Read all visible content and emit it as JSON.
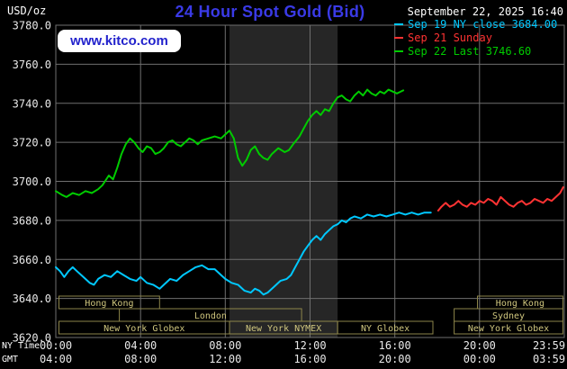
{
  "header": {
    "title": "24 Hour Spot Gold (Bid)",
    "datetime": "September 22, 2025 16:40",
    "watermark": "www.kitco.com",
    "unit": "USD/oz"
  },
  "axes": {
    "ny_time_label": "NY Time",
    "gmt_label": "GMT"
  },
  "legend": [
    {
      "id": "sep19",
      "text": "Sep 19 NY close 3684.00",
      "color": "#00c8ff"
    },
    {
      "id": "sep21",
      "text": "Sep 21 Sunday",
      "color": "#ff3333"
    },
    {
      "id": "sep22",
      "text": "Sep 22 Last 3746.60",
      "color": "#00cc00"
    }
  ],
  "colors": {
    "background": "#000000",
    "title": "#3a3ae6",
    "watermark_text": "#2222cc",
    "datetime_text": "#ffffff"
  },
  "chart_data": {
    "type": "line",
    "title": "24 Hour Spot Gold (Bid)",
    "ylabel": "USD/oz",
    "xlabel": "NY Time / GMT",
    "xlim": [
      0,
      24
    ],
    "ylim": [
      3620,
      3780
    ],
    "grid": true,
    "legend_position": "top-right",
    "colors": {
      "grid": "#6f6f6f",
      "band": "#262626",
      "axis_text": "#e9e9e9",
      "session_box": "#8d854a",
      "session_text": "#cfc67e"
    },
    "band": {
      "name": "NYMEX floor session",
      "start": 8.2,
      "end": 13.3
    },
    "y_ticks": [
      {
        "v": 3780,
        "label": "3780.0"
      },
      {
        "v": 3760,
        "label": "3760.0"
      },
      {
        "v": 3740,
        "label": "3740.0"
      },
      {
        "v": 3720,
        "label": "3720.0"
      },
      {
        "v": 3700,
        "label": "3700.0"
      },
      {
        "v": 3680,
        "label": "3680.0"
      },
      {
        "v": 3660,
        "label": "3660.0"
      },
      {
        "v": 3640,
        "label": "3640.0"
      },
      {
        "v": 3620,
        "label": "3620.0"
      }
    ],
    "x_ticks": [
      {
        "h": 0,
        "ny": "00:00",
        "gmt": "04:00"
      },
      {
        "h": 4,
        "ny": "04:00",
        "gmt": "08:00"
      },
      {
        "h": 8,
        "ny": "08:00",
        "gmt": "12:00"
      },
      {
        "h": 12,
        "ny": "12:00",
        "gmt": "16:00"
      },
      {
        "h": 16,
        "ny": "16:00",
        "gmt": "20:00"
      },
      {
        "h": 20,
        "ny": "20:00",
        "gmt": "00:00"
      },
      {
        "h": 24,
        "ny": "23:59",
        "gmt": "03:59"
      }
    ],
    "sessions": [
      {
        "row": 0,
        "start": 0.15,
        "end": 4.9,
        "label": "Hong Kong"
      },
      {
        "row": 0,
        "start": 19.9,
        "end": 23.93,
        "label": "Hong Kong"
      },
      {
        "row": 1,
        "start": 3.0,
        "end": 11.6,
        "label": "London"
      },
      {
        "row": 1,
        "start": 18.8,
        "end": 23.93,
        "label": "Sydney"
      },
      {
        "row": 2,
        "start": 0.15,
        "end": 8.2,
        "label": "New York Globex"
      },
      {
        "row": 2,
        "start": 8.2,
        "end": 13.3,
        "label": "New York NYMEX"
      },
      {
        "row": 2,
        "start": 13.3,
        "end": 17.8,
        "label": "NY Globex"
      },
      {
        "row": 2,
        "start": 18.8,
        "end": 23.93,
        "label": "New York Globex"
      }
    ],
    "series": [
      {
        "id": "sep19",
        "name": "Sep 19 NY close",
        "close": 3684.0,
        "color": "#00c8ff",
        "points": [
          [
            0,
            3656
          ],
          [
            0.2,
            3654
          ],
          [
            0.4,
            3651
          ],
          [
            0.6,
            3654
          ],
          [
            0.8,
            3656
          ],
          [
            1,
            3654
          ],
          [
            1.3,
            3651
          ],
          [
            1.6,
            3648
          ],
          [
            1.8,
            3647
          ],
          [
            2,
            3650
          ],
          [
            2.3,
            3652
          ],
          [
            2.6,
            3651
          ],
          [
            2.9,
            3654
          ],
          [
            3.2,
            3652
          ],
          [
            3.5,
            3650
          ],
          [
            3.8,
            3649
          ],
          [
            4,
            3651
          ],
          [
            4.3,
            3648
          ],
          [
            4.6,
            3647
          ],
          [
            4.9,
            3645
          ],
          [
            5.1,
            3647
          ],
          [
            5.4,
            3650
          ],
          [
            5.7,
            3649
          ],
          [
            6,
            3652
          ],
          [
            6.3,
            3654
          ],
          [
            6.6,
            3656
          ],
          [
            6.9,
            3657
          ],
          [
            7.2,
            3655
          ],
          [
            7.5,
            3655
          ],
          [
            7.8,
            3652
          ],
          [
            8,
            3650
          ],
          [
            8.3,
            3648
          ],
          [
            8.6,
            3647
          ],
          [
            8.9,
            3644
          ],
          [
            9.2,
            3643
          ],
          [
            9.4,
            3645
          ],
          [
            9.6,
            3644
          ],
          [
            9.8,
            3642
          ],
          [
            10,
            3643
          ],
          [
            10.3,
            3646
          ],
          [
            10.6,
            3649
          ],
          [
            10.9,
            3650
          ],
          [
            11.1,
            3652
          ],
          [
            11.3,
            3656
          ],
          [
            11.5,
            3660
          ],
          [
            11.7,
            3664
          ],
          [
            11.9,
            3667
          ],
          [
            12.1,
            3670
          ],
          [
            12.3,
            3672
          ],
          [
            12.5,
            3670
          ],
          [
            12.7,
            3673
          ],
          [
            12.9,
            3675
          ],
          [
            13.1,
            3677
          ],
          [
            13.3,
            3678
          ],
          [
            13.5,
            3680
          ],
          [
            13.7,
            3679
          ],
          [
            13.9,
            3681
          ],
          [
            14.1,
            3682
          ],
          [
            14.4,
            3681
          ],
          [
            14.7,
            3683
          ],
          [
            15,
            3682
          ],
          [
            15.3,
            3683
          ],
          [
            15.6,
            3682
          ],
          [
            15.9,
            3683
          ],
          [
            16.2,
            3684
          ],
          [
            16.5,
            3683
          ],
          [
            16.8,
            3684
          ],
          [
            17.1,
            3683
          ],
          [
            17.4,
            3684
          ],
          [
            17.7,
            3684
          ]
        ]
      },
      {
        "id": "sep21",
        "name": "Sep 21 Sunday",
        "color": "#ff3333",
        "points": [
          [
            18.05,
            3685
          ],
          [
            18.2,
            3687
          ],
          [
            18.4,
            3689
          ],
          [
            18.6,
            3687
          ],
          [
            18.8,
            3688
          ],
          [
            19,
            3690
          ],
          [
            19.2,
            3688
          ],
          [
            19.4,
            3687
          ],
          [
            19.6,
            3689
          ],
          [
            19.8,
            3688
          ],
          [
            20,
            3690
          ],
          [
            20.2,
            3689
          ],
          [
            20.4,
            3691
          ],
          [
            20.6,
            3690
          ],
          [
            20.8,
            3688
          ],
          [
            21,
            3692
          ],
          [
            21.2,
            3690
          ],
          [
            21.4,
            3688
          ],
          [
            21.6,
            3687
          ],
          [
            21.8,
            3689
          ],
          [
            22,
            3690
          ],
          [
            22.2,
            3688
          ],
          [
            22.4,
            3689
          ],
          [
            22.6,
            3691
          ],
          [
            22.8,
            3690
          ],
          [
            23,
            3689
          ],
          [
            23.2,
            3691
          ],
          [
            23.4,
            3690
          ],
          [
            23.6,
            3692
          ],
          [
            23.8,
            3694
          ],
          [
            23.95,
            3697
          ]
        ]
      },
      {
        "id": "sep22",
        "name": "Sep 22 Last",
        "last": 3746.6,
        "color": "#00cc00",
        "points": [
          [
            0,
            3695
          ],
          [
            0.3,
            3693
          ],
          [
            0.5,
            3692
          ],
          [
            0.8,
            3694
          ],
          [
            1.1,
            3693
          ],
          [
            1.4,
            3695
          ],
          [
            1.7,
            3694
          ],
          [
            2,
            3696
          ],
          [
            2.2,
            3698
          ],
          [
            2.5,
            3703
          ],
          [
            2.7,
            3701
          ],
          [
            2.9,
            3707
          ],
          [
            3.1,
            3714
          ],
          [
            3.3,
            3719
          ],
          [
            3.5,
            3722
          ],
          [
            3.7,
            3720
          ],
          [
            3.9,
            3717
          ],
          [
            4.1,
            3715
          ],
          [
            4.3,
            3718
          ],
          [
            4.5,
            3717
          ],
          [
            4.7,
            3714
          ],
          [
            4.9,
            3715
          ],
          [
            5.1,
            3717
          ],
          [
            5.3,
            3720
          ],
          [
            5.5,
            3721
          ],
          [
            5.7,
            3719
          ],
          [
            5.9,
            3718
          ],
          [
            6.1,
            3720
          ],
          [
            6.3,
            3722
          ],
          [
            6.5,
            3721
          ],
          [
            6.7,
            3719
          ],
          [
            6.9,
            3721
          ],
          [
            7.2,
            3722
          ],
          [
            7.5,
            3723
          ],
          [
            7.8,
            3722
          ],
          [
            8,
            3724
          ],
          [
            8.2,
            3726
          ],
          [
            8.4,
            3722
          ],
          [
            8.6,
            3712
          ],
          [
            8.8,
            3708
          ],
          [
            9,
            3711
          ],
          [
            9.2,
            3716
          ],
          [
            9.4,
            3718
          ],
          [
            9.6,
            3714
          ],
          [
            9.8,
            3712
          ],
          [
            10,
            3711
          ],
          [
            10.2,
            3714
          ],
          [
            10.5,
            3717
          ],
          [
            10.8,
            3715
          ],
          [
            11,
            3716
          ],
          [
            11.2,
            3719
          ],
          [
            11.5,
            3723
          ],
          [
            11.7,
            3727
          ],
          [
            11.9,
            3731
          ],
          [
            12.1,
            3734
          ],
          [
            12.3,
            3736
          ],
          [
            12.5,
            3734
          ],
          [
            12.7,
            3737
          ],
          [
            12.9,
            3736
          ],
          [
            13.1,
            3740
          ],
          [
            13.3,
            3743
          ],
          [
            13.5,
            3744
          ],
          [
            13.7,
            3742
          ],
          [
            13.9,
            3741
          ],
          [
            14.1,
            3744
          ],
          [
            14.3,
            3746
          ],
          [
            14.5,
            3744
          ],
          [
            14.7,
            3747
          ],
          [
            14.9,
            3745
          ],
          [
            15.1,
            3744
          ],
          [
            15.3,
            3746
          ],
          [
            15.5,
            3745
          ],
          [
            15.7,
            3747
          ],
          [
            15.9,
            3746
          ],
          [
            16.1,
            3745
          ],
          [
            16.4,
            3746.6
          ]
        ]
      }
    ]
  }
}
